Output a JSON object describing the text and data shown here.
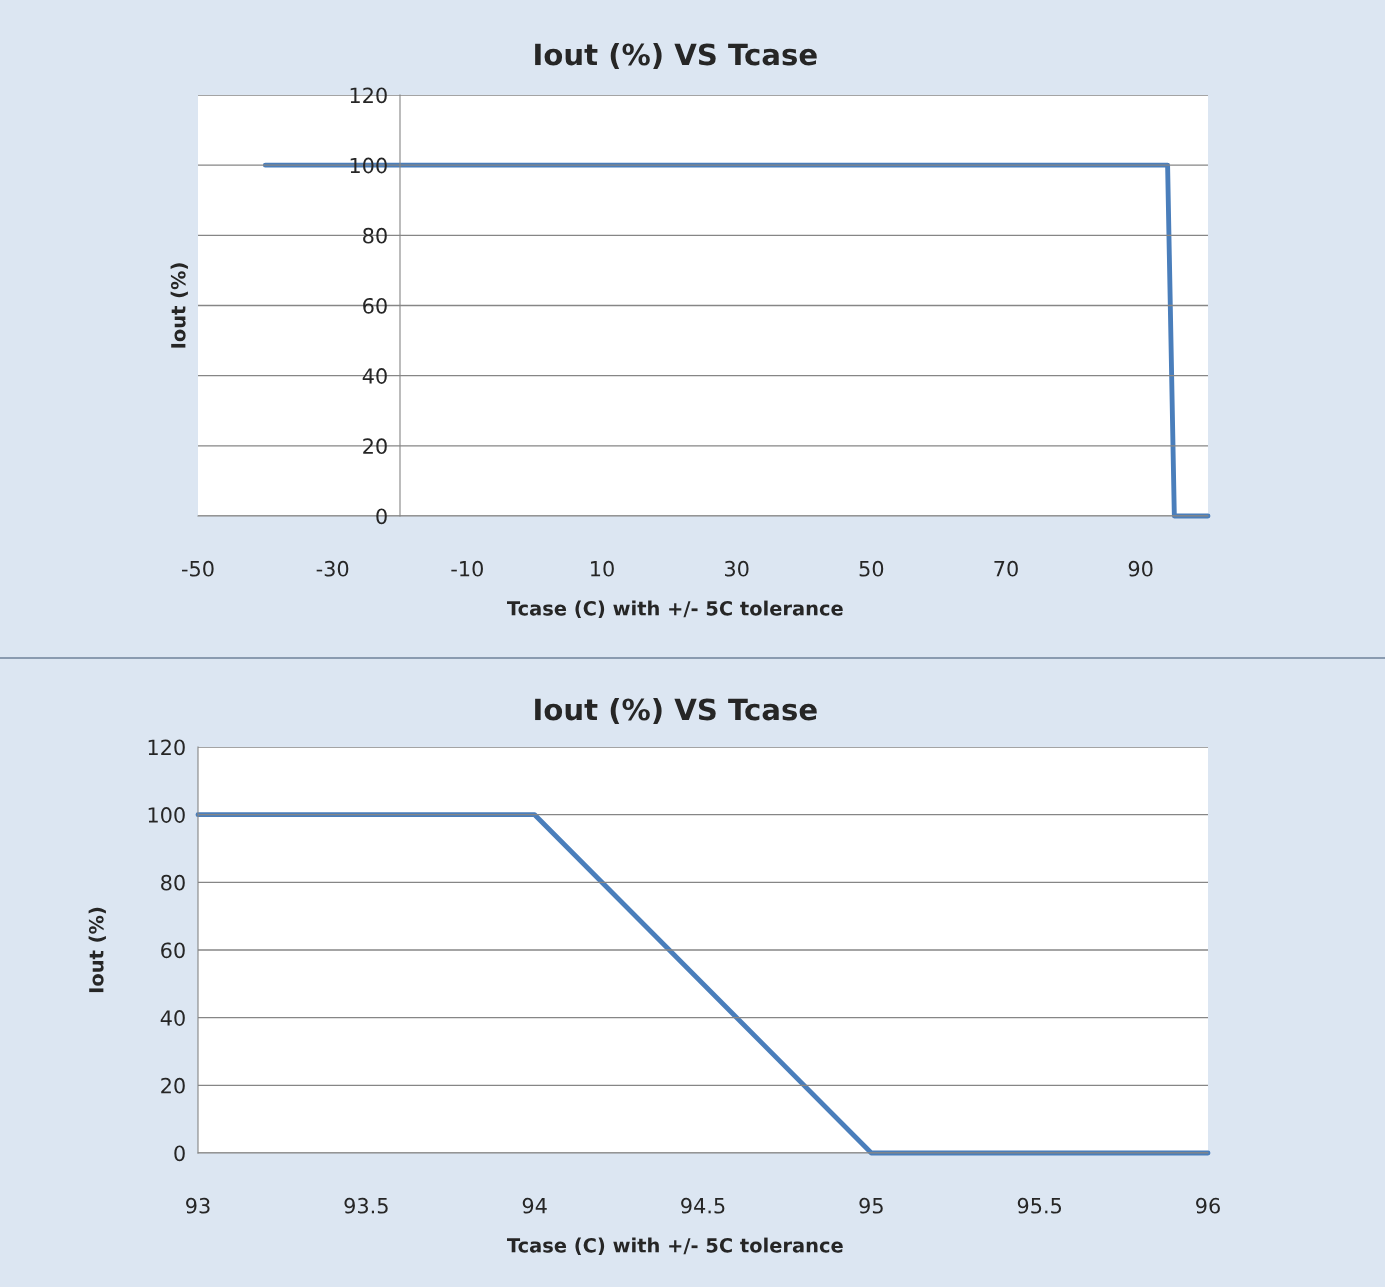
{
  "chart_data": [
    {
      "type": "line",
      "title": "Iout (%) VS Tcase",
      "xlabel": "Tcase (C) with +/- 5C tolerance",
      "ylabel": "Iout (%)",
      "x": [
        -40,
        94,
        95,
        100
      ],
      "series": [
        {
          "color": "#4a7ebb",
          "values": [
            100,
            100,
            0,
            0
          ]
        }
      ],
      "xlim": [
        -50,
        100
      ],
      "ylim": [
        0,
        120
      ],
      "xticks": [
        -50,
        -30,
        -10,
        10,
        30,
        50,
        70,
        90
      ],
      "yticks": [
        0,
        20,
        40,
        60,
        80,
        100,
        120
      ],
      "grid": "y"
    },
    {
      "type": "line",
      "title": "Iout (%) VS Tcase",
      "xlabel": "Tcase (C) with +/- 5C tolerance",
      "ylabel": "Iout (%)",
      "x": [
        93,
        94,
        95,
        96
      ],
      "series": [
        {
          "color": "#4a7ebb",
          "values": [
            100,
            100,
            0,
            0
          ]
        }
      ],
      "xlim": [
        93,
        96
      ],
      "ylim": [
        0,
        120
      ],
      "xticks": [
        93,
        93.5,
        94,
        94.5,
        95,
        95.5,
        96
      ],
      "yticks": [
        0,
        20,
        40,
        60,
        80,
        100,
        120
      ],
      "grid": "y"
    }
  ]
}
